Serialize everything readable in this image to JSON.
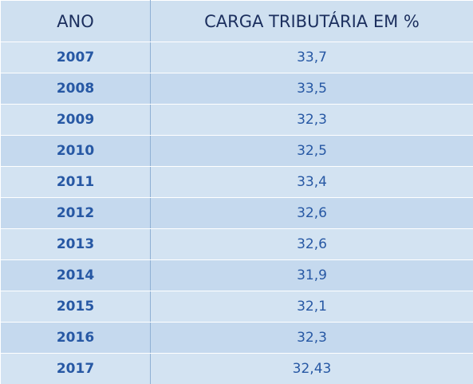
{
  "table": {
    "header": [
      "ANO",
      "CARGA TRIBUTÁRIA EM %"
    ],
    "rows": [
      [
        "2007",
        "33,7"
      ],
      [
        "2008",
        "33,5"
      ],
      [
        "2009",
        "32,3"
      ],
      [
        "2010",
        "32,5"
      ],
      [
        "2011",
        "33,4"
      ],
      [
        "2012",
        "32,6"
      ],
      [
        "2013",
        "32,6"
      ],
      [
        "2014",
        "31,9"
      ],
      [
        "2015",
        "32,1"
      ],
      [
        "2016",
        "32,3"
      ],
      [
        "2017",
        "32,43"
      ]
    ]
  }
}
